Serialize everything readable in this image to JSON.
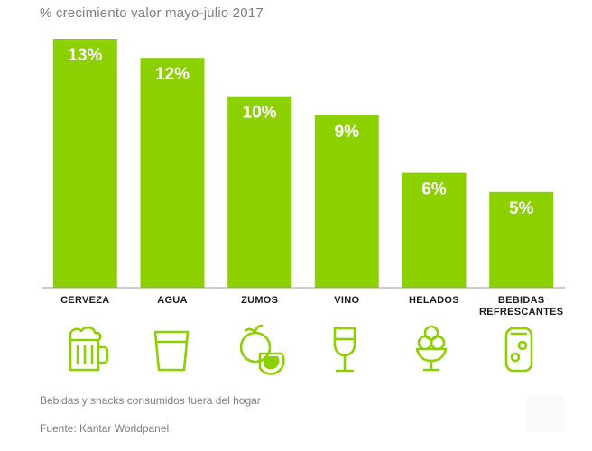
{
  "title": "% crecimiento valor mayo-julio 2017",
  "footnote": "Bebidas y snacks consumidos fuera del hogar",
  "source": "Fuente:  Kantar Worldpanel",
  "colors": {
    "bar": "#8cd000",
    "axis": "#9a9a9a",
    "text_muted": "#7f7f7f"
  },
  "chart_data": {
    "type": "bar",
    "title": "% crecimiento valor mayo-julio 2017",
    "categories": [
      "CERVEZA",
      "AGUA",
      "ZUMOS",
      "VINO",
      "HELADOS",
      "BEBIDAS REFRESCANTES"
    ],
    "values": [
      13,
      12,
      10,
      9,
      6,
      5
    ],
    "value_labels": [
      "13%",
      "12%",
      "10%",
      "9%",
      "6%",
      "5%"
    ],
    "icons": [
      "beer-mug-icon",
      "water-glass-icon",
      "citrus-fruit-icon",
      "wine-glass-icon",
      "ice-cream-cup-icon",
      "soda-can-icon"
    ],
    "ylim": [
      0,
      13
    ],
    "grid": false,
    "legend": "none"
  }
}
